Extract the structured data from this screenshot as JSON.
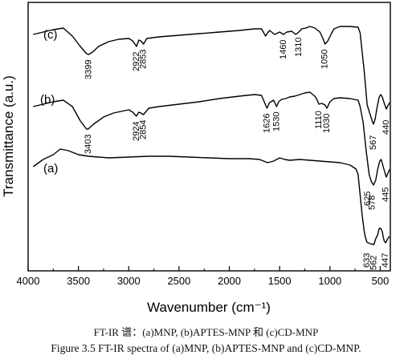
{
  "chart_data": {
    "type": "line",
    "xlabel": "Wavenumber (cm⁻¹)",
    "ylabel": "Transmittance (a.u.)",
    "xlim": [
      4000,
      400
    ],
    "x_reversed": true,
    "x_ticks": [
      "4000",
      "3500",
      "3000",
      "2500",
      "2000",
      "1500",
      "1000",
      "500"
    ],
    "grid": false,
    "series": [
      {
        "name": "(c)",
        "points": [
          [
            3950,
            40
          ],
          [
            3850,
            37
          ],
          [
            3750,
            34
          ],
          [
            3650,
            32
          ],
          [
            3560,
            42
          ],
          [
            3480,
            55
          ],
          [
            3420,
            64
          ],
          [
            3399,
            65
          ],
          [
            3360,
            62
          ],
          [
            3300,
            55
          ],
          [
            3200,
            49
          ],
          [
            3100,
            46
          ],
          [
            3000,
            45
          ],
          [
            2960,
            48
          ],
          [
            2922,
            55
          ],
          [
            2900,
            47
          ],
          [
            2880,
            48
          ],
          [
            2853,
            52
          ],
          [
            2820,
            45
          ],
          [
            2700,
            43
          ],
          [
            2500,
            41
          ],
          [
            2300,
            39
          ],
          [
            2100,
            37
          ],
          [
            1900,
            35
          ],
          [
            1750,
            33
          ],
          [
            1680,
            33
          ],
          [
            1640,
            42
          ],
          [
            1620,
            38
          ],
          [
            1600,
            35
          ],
          [
            1550,
            40
          ],
          [
            1500,
            37
          ],
          [
            1460,
            40
          ],
          [
            1430,
            37
          ],
          [
            1380,
            36
          ],
          [
            1340,
            40
          ],
          [
            1310,
            37
          ],
          [
            1280,
            33
          ],
          [
            1240,
            32
          ],
          [
            1200,
            30
          ],
          [
            1150,
            32
          ],
          [
            1100,
            37
          ],
          [
            1070,
            45
          ],
          [
            1050,
            52
          ],
          [
            1020,
            48
          ],
          [
            990,
            40
          ],
          [
            960,
            33
          ],
          [
            900,
            30
          ],
          [
            800,
            30
          ],
          [
            720,
            31
          ],
          [
            700,
            38
          ],
          [
            660,
            85
          ],
          [
            630,
            128
          ],
          [
            600,
            140
          ],
          [
            580,
            148
          ],
          [
            567,
            152
          ],
          [
            550,
            145
          ],
          [
            530,
            130
          ],
          [
            510,
            118
          ],
          [
            495,
            115
          ],
          [
            480,
            118
          ],
          [
            460,
            126
          ],
          [
            440,
            133
          ],
          [
            420,
            128
          ],
          [
            405,
            125
          ]
        ]
      },
      {
        "name": "(b)",
        "points": [
          [
            3950,
            130
          ],
          [
            3850,
            127
          ],
          [
            3750,
            124
          ],
          [
            3650,
            122
          ],
          [
            3560,
            130
          ],
          [
            3480,
            148
          ],
          [
            3420,
            158
          ],
          [
            3403,
            158
          ],
          [
            3350,
            152
          ],
          [
            3250,
            143
          ],
          [
            3150,
            138
          ],
          [
            3000,
            134
          ],
          [
            2960,
            137
          ],
          [
            2924,
            142
          ],
          [
            2900,
            137
          ],
          [
            2880,
            138
          ],
          [
            2854,
            140
          ],
          [
            2800,
            132
          ],
          [
            2700,
            130
          ],
          [
            2500,
            127
          ],
          [
            2300,
            124
          ],
          [
            2100,
            120
          ],
          [
            1900,
            117
          ],
          [
            1750,
            115
          ],
          [
            1680,
            116
          ],
          [
            1640,
            128
          ],
          [
            1626,
            132
          ],
          [
            1600,
            125
          ],
          [
            1560,
            122
          ],
          [
            1530,
            130
          ],
          [
            1510,
            124
          ],
          [
            1480,
            121
          ],
          [
            1440,
            120
          ],
          [
            1400,
            118
          ],
          [
            1350,
            117
          ],
          [
            1300,
            115
          ],
          [
            1250,
            113
          ],
          [
            1200,
            112
          ],
          [
            1150,
            117
          ],
          [
            1130,
            121
          ],
          [
            1110,
            127
          ],
          [
            1080,
            126
          ],
          [
            1050,
            128
          ],
          [
            1030,
            132
          ],
          [
            1000,
            124
          ],
          [
            960,
            120
          ],
          [
            900,
            119
          ],
          [
            800,
            120
          ],
          [
            720,
            122
          ],
          [
            700,
            130
          ],
          [
            670,
            150
          ],
          [
            640,
            185
          ],
          [
            610,
            215
          ],
          [
            590,
            223
          ],
          [
            567,
            228
          ],
          [
            545,
            222
          ],
          [
            525,
            208
          ],
          [
            505,
            198
          ],
          [
            490,
            196
          ],
          [
            470,
            205
          ],
          [
            455,
            212
          ],
          [
            440,
            218
          ],
          [
            420,
            212
          ],
          [
            405,
            208
          ]
        ]
      },
      {
        "name": "(a)",
        "points": [
          [
            3950,
            205
          ],
          [
            3850,
            196
          ],
          [
            3750,
            190
          ],
          [
            3680,
            183
          ],
          [
            3600,
            185
          ],
          [
            3500,
            190
          ],
          [
            3400,
            192
          ],
          [
            3300,
            193
          ],
          [
            3200,
            194
          ],
          [
            3000,
            193
          ],
          [
            2800,
            192
          ],
          [
            2600,
            192
          ],
          [
            2400,
            193
          ],
          [
            2200,
            194
          ],
          [
            2000,
            195
          ],
          [
            1800,
            195
          ],
          [
            1700,
            196
          ],
          [
            1620,
            200
          ],
          [
            1560,
            198
          ],
          [
            1500,
            194
          ],
          [
            1450,
            196
          ],
          [
            1400,
            197
          ],
          [
            1300,
            196
          ],
          [
            1200,
            197
          ],
          [
            1100,
            198
          ],
          [
            1000,
            199
          ],
          [
            900,
            200
          ],
          [
            800,
            203
          ],
          [
            740,
            208
          ],
          [
            720,
            215
          ],
          [
            700,
            240
          ],
          [
            680,
            265
          ],
          [
            660,
            285
          ],
          [
            650,
            292
          ],
          [
            633,
            299
          ],
          [
            620,
            300
          ],
          [
            600,
            301
          ],
          [
            580,
            302
          ],
          [
            562,
            302
          ],
          [
            545,
            295
          ],
          [
            525,
            290
          ],
          [
            510,
            282
          ],
          [
            495,
            282
          ],
          [
            480,
            286
          ],
          [
            470,
            293
          ],
          [
            460,
            298
          ],
          [
            447,
            300
          ],
          [
            430,
            296
          ],
          [
            410,
            292
          ]
        ]
      }
    ],
    "series_labels": [
      "(c)",
      "(b)",
      "(a)"
    ],
    "annotations": [
      {
        "series": "(c)",
        "x": 3399,
        "text": "3399"
      },
      {
        "series": "(c)",
        "x": 2922,
        "text": "2922"
      },
      {
        "series": "(c)",
        "x": 2853,
        "text": "2853"
      },
      {
        "series": "(c)",
        "x": 1460,
        "text": "1460"
      },
      {
        "series": "(c)",
        "x": 1310,
        "text": "1310"
      },
      {
        "series": "(c)",
        "x": 1050,
        "text": "1050"
      },
      {
        "series": "(c)",
        "x": 567,
        "text": "567"
      },
      {
        "series": "(c)",
        "x": 440,
        "text": "440"
      },
      {
        "series": "(b)",
        "x": 3403,
        "text": "3403"
      },
      {
        "series": "(b)",
        "x": 2924,
        "text": "2924"
      },
      {
        "series": "(b)",
        "x": 2854,
        "text": "2854"
      },
      {
        "series": "(b)",
        "x": 1626,
        "text": "1626"
      },
      {
        "series": "(b)",
        "x": 1530,
        "text": "1530"
      },
      {
        "series": "(b)",
        "x": 1110,
        "text": "1110"
      },
      {
        "series": "(b)",
        "x": 1030,
        "text": "1030"
      },
      {
        "series": "(b)",
        "x": 625,
        "text": "625"
      },
      {
        "series": "(b)",
        "x": 578,
        "text": "578"
      },
      {
        "series": "(b)",
        "x": 445,
        "text": "445"
      },
      {
        "series": "(a)",
        "x": 633,
        "text": "633"
      },
      {
        "series": "(a)",
        "x": 562,
        "text": "562"
      },
      {
        "series": "(a)",
        "x": 447,
        "text": "447"
      }
    ]
  },
  "caption": {
    "chinese": "FT-IR 谱：(a)MNP, (b)APTES-MNP 和 (c)CD-MNP",
    "english": "Figure 3.5 FT-IR spectra of (a)MNP, (b)APTES-MNP and (c)CD-MNP."
  }
}
